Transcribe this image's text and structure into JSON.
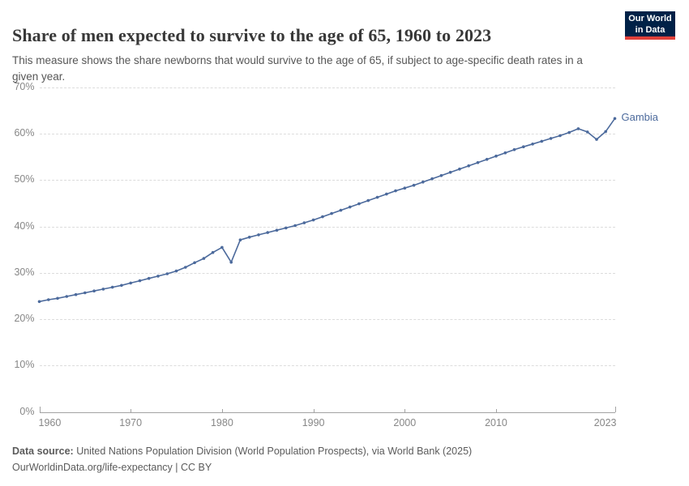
{
  "header": {
    "title": "Share of men expected to survive to the age of 65, 1960 to 2023",
    "subtitle": "This measure shows the share newborns that would survive to the age of 65, if subject to age-specific death rates in a given year.",
    "logo": {
      "line1": "Our World",
      "line2": "in Data"
    }
  },
  "chart_data": {
    "type": "line",
    "title": "Share of men expected to survive to the age of 65, 1960 to 2023",
    "xlabel": "",
    "ylabel": "",
    "xlim": [
      1960,
      2023
    ],
    "ylim": [
      0,
      70
    ],
    "grid": "horizontal-dashed",
    "legend_position": "end-of-line-label",
    "xticks": [
      1960,
      1970,
      1980,
      1990,
      2000,
      2010,
      2023
    ],
    "xtick_labels": [
      "1960",
      "1970",
      "1980",
      "1990",
      "2000",
      "2010",
      "2023"
    ],
    "yticks": [
      0,
      10,
      20,
      30,
      40,
      50,
      60,
      70
    ],
    "ytick_labels": [
      "0%",
      "10%",
      "20%",
      "30%",
      "40%",
      "50%",
      "60%",
      "70%"
    ],
    "x": [
      1960,
      1961,
      1962,
      1963,
      1964,
      1965,
      1966,
      1967,
      1968,
      1969,
      1970,
      1971,
      1972,
      1973,
      1974,
      1975,
      1976,
      1977,
      1978,
      1979,
      1980,
      1981,
      1982,
      1983,
      1984,
      1985,
      1986,
      1987,
      1988,
      1989,
      1990,
      1991,
      1992,
      1993,
      1994,
      1995,
      1996,
      1997,
      1998,
      1999,
      2000,
      2001,
      2002,
      2003,
      2004,
      2005,
      2006,
      2007,
      2008,
      2009,
      2010,
      2011,
      2012,
      2013,
      2014,
      2015,
      2016,
      2017,
      2018,
      2019,
      2020,
      2021,
      2022,
      2023
    ],
    "series": [
      {
        "name": "Gambia",
        "color": "#4c6a9c",
        "values": [
          23.8,
          24.2,
          24.5,
          24.9,
          25.3,
          25.7,
          26.1,
          26.5,
          26.9,
          27.3,
          27.8,
          28.3,
          28.8,
          29.3,
          29.8,
          30.4,
          31.2,
          32.2,
          33.1,
          34.4,
          35.5,
          32.3,
          37.1,
          37.7,
          38.2,
          38.7,
          39.2,
          39.7,
          40.2,
          40.8,
          41.4,
          42.1,
          42.8,
          43.5,
          44.2,
          44.9,
          45.6,
          46.3,
          47.0,
          47.7,
          48.3,
          48.9,
          49.6,
          50.3,
          51.0,
          51.7,
          52.4,
          53.1,
          53.8,
          54.5,
          55.2,
          55.9,
          56.6,
          57.2,
          57.8,
          58.4,
          59.0,
          59.6,
          60.3,
          61.1,
          60.4,
          58.8,
          60.5,
          63.3
        ]
      }
    ]
  },
  "footer": {
    "source_prefix": "Data source:",
    "source_text": " United Nations Population Division (World Population Prospects), via World Bank (2025)",
    "license_line": "OurWorldinData.org/life-expectancy | CC BY"
  },
  "colors": {
    "line": "#4c6a9c",
    "logo_background": "#002147",
    "logo_accent": "#e0403a",
    "gridline": "#dcdcdc",
    "axis_text": "#878787"
  }
}
